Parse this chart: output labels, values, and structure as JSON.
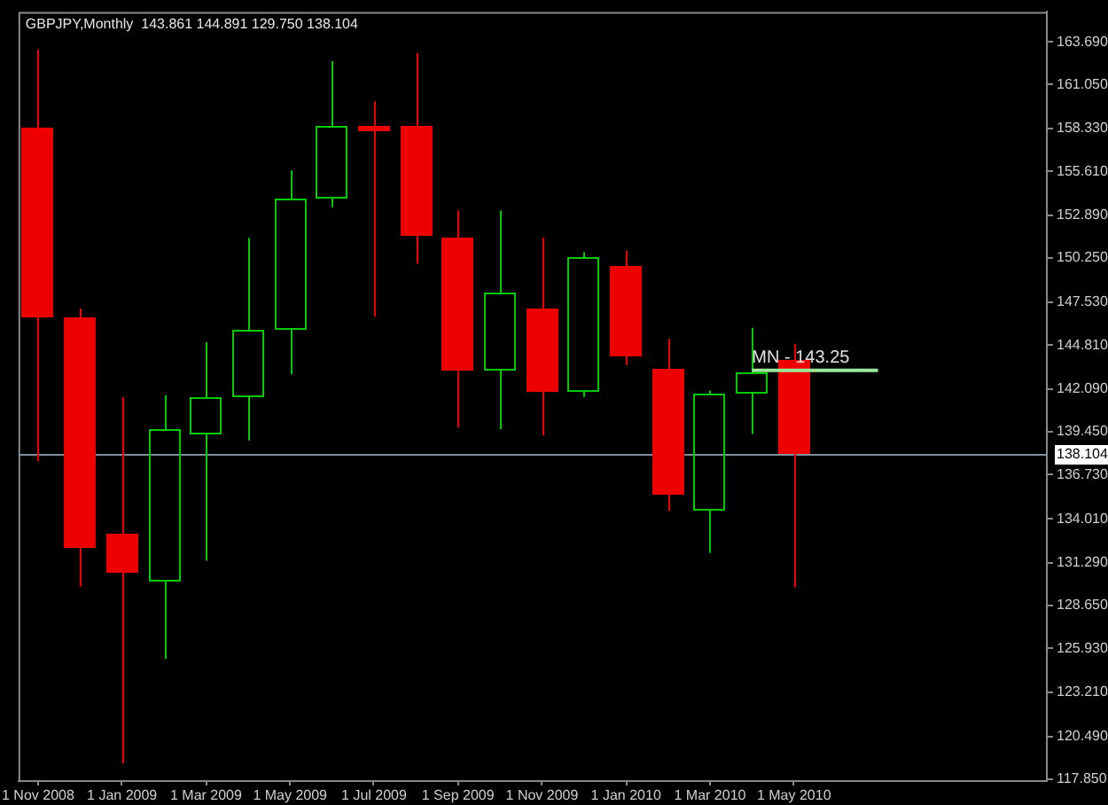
{
  "chart_data": {
    "type": "candlestick",
    "title": "GBPJPY,Monthly  143.861 144.891 129.750 138.104",
    "series": [
      {
        "x": [
          "2008-11",
          "2008-12",
          "2009-01",
          "2009-02",
          "2009-03",
          "2009-04",
          "2009-05",
          "2009-06",
          "2009-07",
          "2009-08",
          "2009-09",
          "2009-10",
          "2009-11",
          "2009-12",
          "2010-01",
          "2010-02",
          "2010-03",
          "2010-04",
          "2010-05"
        ],
        "ohlc": [
          [
            158.4,
            163.2,
            137.6,
            146.6
          ],
          [
            146.6,
            147.1,
            129.8,
            132.2
          ],
          [
            133.1,
            141.6,
            118.8,
            130.7
          ],
          [
            130.1,
            141.7,
            125.3,
            139.6
          ],
          [
            139.3,
            145.0,
            131.4,
            141.6
          ],
          [
            141.6,
            151.5,
            138.9,
            145.8
          ],
          [
            145.8,
            155.7,
            143.0,
            153.9
          ],
          [
            153.9,
            162.5,
            153.4,
            158.5
          ],
          [
            158.5,
            160.0,
            146.6,
            158.1
          ],
          [
            158.5,
            163.0,
            149.9,
            151.6
          ],
          [
            151.5,
            153.2,
            139.7,
            143.2
          ],
          [
            143.2,
            153.2,
            139.6,
            148.1
          ],
          [
            147.1,
            151.5,
            139.2,
            141.9
          ],
          [
            141.9,
            150.6,
            141.6,
            150.3
          ],
          [
            149.7,
            150.7,
            143.6,
            144.1
          ],
          [
            143.3,
            145.2,
            134.5,
            135.5
          ],
          [
            134.5,
            142.0,
            131.9,
            141.8
          ],
          [
            141.8,
            145.9,
            139.3,
            143.1
          ],
          [
            143.861,
            144.891,
            129.75,
            138.104
          ]
        ],
        "colors": [
          "#ee0000",
          "#ee0000",
          "#ee0000",
          "#00cc00",
          "#00cc00",
          "#00cc00",
          "#00cc00",
          "#00cc00",
          "#ee0000",
          "#ee0000",
          "#ee0000",
          "#00cc00",
          "#ee0000",
          "#00cc00",
          "#ee0000",
          "#ee0000",
          "#00cc00",
          "#00cc00",
          "#ee0000"
        ]
      },
      {
        "type": "line",
        "x": [
          "2010-04",
          "2010-07"
        ],
        "values": [
          143.25,
          143.25
        ],
        "color": "#98e898"
      }
    ],
    "xlim": [
      "2008-10-17",
      "2010-11"
    ],
    "xticks": [
      {
        "value": "2008-11",
        "label": "1 Nov 2008"
      },
      {
        "value": "2009-01",
        "label": "1 Jan 2009"
      },
      {
        "value": "2009-03",
        "label": "1 Mar 2009"
      },
      {
        "value": "2009-05",
        "label": "1 May 2009"
      },
      {
        "value": "2009-07",
        "label": "1 Jul 2009"
      },
      {
        "value": "2009-09",
        "label": "1 Sep 2009"
      },
      {
        "value": "2009-11",
        "label": "1 Nov 2009"
      },
      {
        "value": "2010-01",
        "label": "1 Jan 2010"
      },
      {
        "value": "2010-03",
        "label": "1 Mar 2010"
      },
      {
        "value": "2010-05",
        "label": "1 May 2010"
      }
    ],
    "ylim": [
      117.75,
      165.55
    ],
    "yticks": [
      {
        "value": 117.85,
        "label": "117.850"
      },
      {
        "value": 120.49,
        "label": "120.490"
      },
      {
        "value": 123.21,
        "label": "123.210"
      },
      {
        "value": 125.93,
        "label": "125.930"
      },
      {
        "value": 128.65,
        "label": "128.650"
      },
      {
        "value": 131.29,
        "label": "131.290"
      },
      {
        "value": 134.01,
        "label": "134.010"
      },
      {
        "value": 136.73,
        "label": "136.730"
      },
      {
        "value": 139.45,
        "label": "139.450"
      },
      {
        "value": 142.09,
        "label": "142.090"
      },
      {
        "value": 144.81,
        "label": "144.810"
      },
      {
        "value": 147.53,
        "label": "147.530"
      },
      {
        "value": 150.25,
        "label": "150.250"
      },
      {
        "value": 152.89,
        "label": "152.890"
      },
      {
        "value": 155.61,
        "label": "155.610"
      },
      {
        "value": 158.33,
        "label": "158.330"
      },
      {
        "value": 161.05,
        "label": "161.050"
      },
      {
        "value": 163.69,
        "label": "163.690"
      }
    ],
    "ref_lines": [
      {
        "axis": "y",
        "value": 138.104,
        "label": "138.104",
        "color": "#7f8fa0"
      }
    ],
    "annotations": [
      {
        "text": "MN - 143.25",
        "x": "2010-04",
        "y": 143.25
      }
    ]
  }
}
